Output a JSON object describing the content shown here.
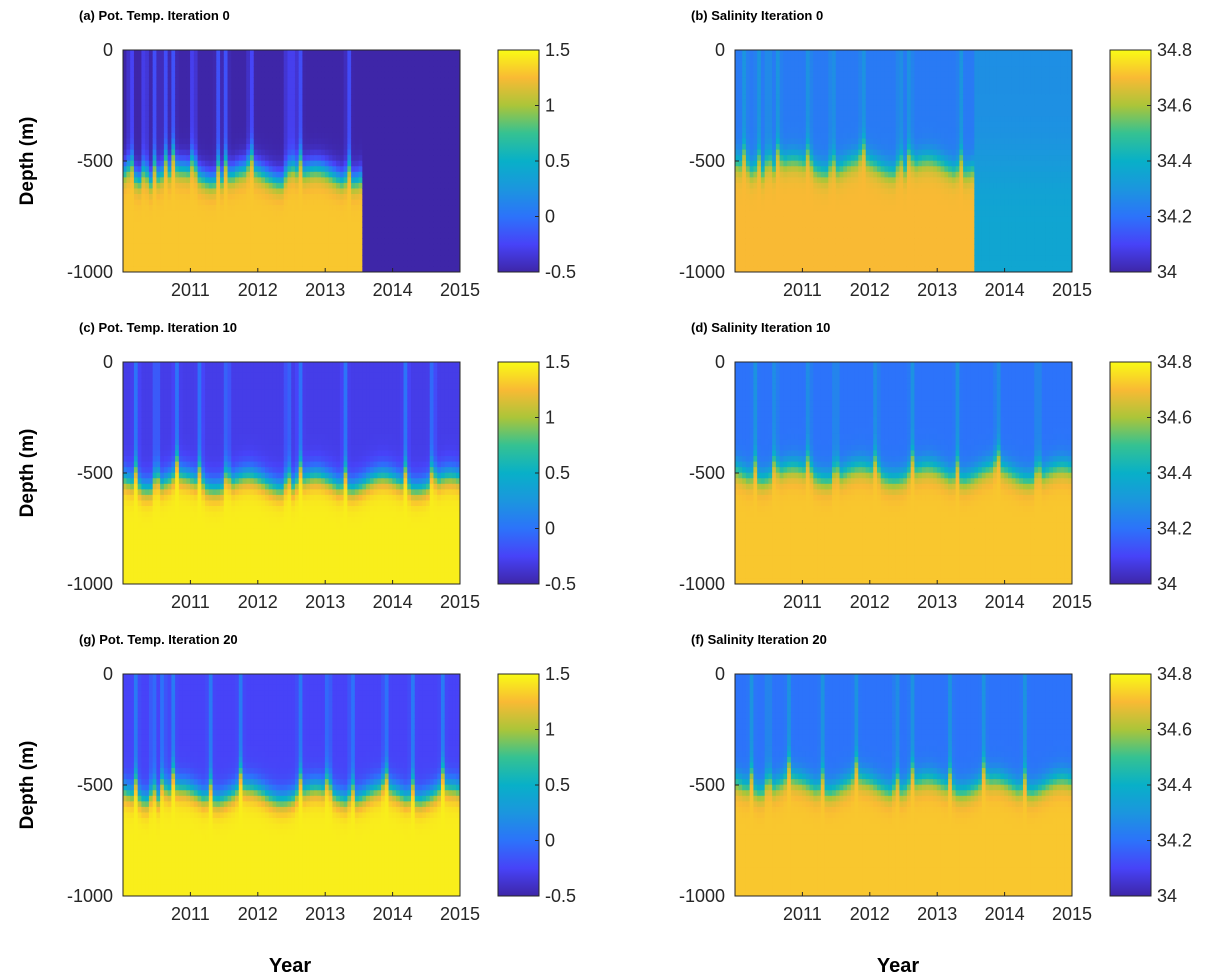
{
  "figure": {
    "xlabel": "Year",
    "ylabel": "Depth (m)"
  },
  "chart_data": [
    {
      "type": "heatmap",
      "variable": "temperature",
      "title": "(a) Pot. Temp. Iteration 0",
      "ylabel": "Depth (m)",
      "xlabel": "",
      "xlim": [
        2010.0,
        2015.0
      ],
      "ylim": [
        -1000,
        0
      ],
      "xticks": [
        "2011",
        "2012",
        "2013",
        "2014",
        "2015"
      ],
      "yticks": [
        "0",
        "-500",
        "-1000"
      ],
      "colorbar": {
        "range": [
          -0.5,
          1.5
        ],
        "ticks": [
          "1.5",
          "1",
          "0.5",
          "0",
          "-0.5"
        ]
      },
      "surface_value": -0.5,
      "deep_value": 1.3,
      "thermocline_depth": -560,
      "data_end_year": 2013.55,
      "streaks": [
        2010.12,
        2010.33,
        2010.48,
        2010.63,
        2010.75,
        2011.05,
        2011.42,
        2011.53,
        2011.9,
        2012.45,
        2012.55,
        2012.63,
        2013.35
      ]
    },
    {
      "type": "heatmap",
      "variable": "salinity",
      "title": "(b) Salinity Iteration 0",
      "ylabel": "Depth (m)",
      "xlabel": "",
      "xlim": [
        2010.0,
        2015.0
      ],
      "ylim": [
        -1000,
        0
      ],
      "xticks": [
        "2011",
        "2012",
        "2013",
        "2014",
        "2015"
      ],
      "yticks": [
        "0",
        "-500",
        "-1000"
      ],
      "colorbar": {
        "range": [
          34.0,
          34.8
        ],
        "ticks": [
          "34.8",
          "34.6",
          "34.4",
          "34.2",
          "34"
        ]
      },
      "surface_value": 34.22,
      "deep_value": 34.7,
      "thermocline_depth": -520,
      "data_end_year": 2013.55,
      "streaks": [
        2010.15,
        2010.35,
        2010.5,
        2010.65,
        2011.1,
        2011.45,
        2011.9,
        2012.45,
        2012.6,
        2013.35
      ]
    },
    {
      "type": "heatmap",
      "variable": "temperature",
      "title": "(c) Pot. Temp. Iteration 10",
      "ylabel": "Depth (m)",
      "xlabel": "",
      "xlim": [
        2010.0,
        2015.0
      ],
      "ylim": [
        -1000,
        0
      ],
      "xticks": [
        "2011",
        "2012",
        "2013",
        "2014",
        "2015"
      ],
      "yticks": [
        "0",
        "-500",
        "-1000"
      ],
      "colorbar": {
        "range": [
          -0.5,
          1.5
        ],
        "ticks": [
          "1.5",
          "1",
          "0.5",
          "0",
          "-0.5"
        ]
      },
      "surface_value": -0.3,
      "deep_value": 1.45,
      "thermocline_depth": -540,
      "streaks": [
        2010.2,
        2010.5,
        2010.8,
        2011.15,
        2011.55,
        2012.45,
        2012.63,
        2013.3,
        2014.2,
        2014.6
      ]
    },
    {
      "type": "heatmap",
      "variable": "salinity",
      "title": "(d) Salinity Iteration 10",
      "ylabel": "Depth (m)",
      "xlabel": "",
      "xlim": [
        2010.0,
        2015.0
      ],
      "ylim": [
        -1000,
        0
      ],
      "xticks": [
        "2011",
        "2012",
        "2013",
        "2014",
        "2015"
      ],
      "yticks": [
        "0",
        "-500",
        "-1000"
      ],
      "colorbar": {
        "range": [
          34.0,
          34.8
        ],
        "ticks": [
          "34.8",
          "34.6",
          "34.4",
          "34.2",
          "34"
        ]
      },
      "surface_value": 34.2,
      "deep_value": 34.72,
      "thermocline_depth": -500,
      "streaks": [
        2010.3,
        2010.6,
        2011.1,
        2011.5,
        2012.1,
        2012.63,
        2013.3,
        2013.9,
        2014.5
      ]
    },
    {
      "type": "heatmap",
      "variable": "temperature",
      "title": "(g) Pot. Temp. Iteration 20",
      "ylabel": "Depth (m)",
      "xlabel": "Year",
      "xlim": [
        2010.0,
        2015.0
      ],
      "ylim": [
        -1000,
        0
      ],
      "xticks": [
        "2011",
        "2012",
        "2013",
        "2014",
        "2015"
      ],
      "yticks": [
        "0",
        "-500",
        "-1000"
      ],
      "colorbar": {
        "range": [
          -0.5,
          1.5
        ],
        "ticks": [
          "1.5",
          "1",
          "0.5",
          "0",
          "-0.5"
        ]
      },
      "surface_value": -0.25,
      "deep_value": 1.45,
      "thermocline_depth": -540,
      "streaks": [
        2010.2,
        2010.45,
        2010.6,
        2010.75,
        2011.3,
        2011.75,
        2012.63,
        2013.05,
        2013.4,
        2013.9,
        2014.3,
        2014.75
      ]
    },
    {
      "type": "heatmap",
      "variable": "salinity",
      "title": "(f) Salinity Iteration 20",
      "ylabel": "Depth (m)",
      "xlabel": "Year",
      "xlim": [
        2010.0,
        2015.0
      ],
      "ylim": [
        -1000,
        0
      ],
      "xticks": [
        "2011",
        "2012",
        "2013",
        "2014",
        "2015"
      ],
      "yticks": [
        "0",
        "-500",
        "-1000"
      ],
      "colorbar": {
        "range": [
          34.0,
          34.8
        ],
        "ticks": [
          "34.8",
          "34.6",
          "34.4",
          "34.2",
          "34"
        ]
      },
      "surface_value": 34.2,
      "deep_value": 34.72,
      "thermocline_depth": -500,
      "streaks": [
        2010.25,
        2010.5,
        2010.8,
        2011.3,
        2011.8,
        2012.4,
        2012.63,
        2013.2,
        2013.7,
        2014.3
      ]
    }
  ]
}
